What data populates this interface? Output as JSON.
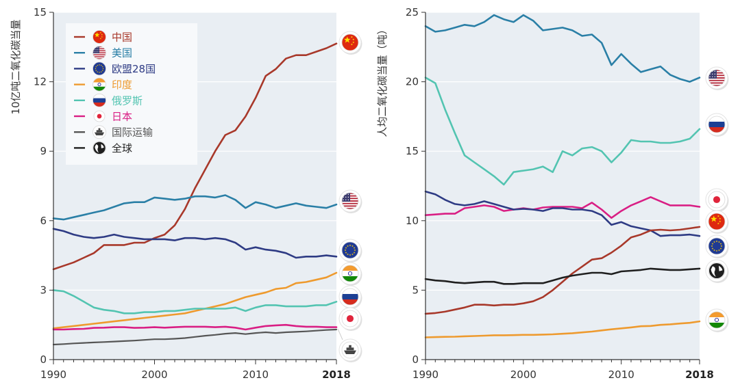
{
  "colors": {
    "china": "#a8382a",
    "usa": "#2a7fa6",
    "eu": "#2e3b84",
    "india": "#ee9a2e",
    "russia": "#53c4b1",
    "japan": "#d91e84",
    "shipping": "#555555",
    "world": "#1f1f1f"
  },
  "chart_data": [
    {
      "type": "line",
      "ylabel": "10亿吨二氧化碳当量",
      "xlim": [
        1990,
        2018
      ],
      "ylim": [
        0,
        15
      ],
      "xticks": [
        {
          "value": 1990,
          "label": "1990"
        },
        {
          "value": 2000,
          "label": "2000"
        },
        {
          "value": 2010,
          "label": "2010"
        },
        {
          "value": 2018,
          "label": "2018"
        }
      ],
      "yticks": [
        {
          "value": 0,
          "label": "0"
        },
        {
          "value": 3,
          "label": "3"
        },
        {
          "value": 6,
          "label": "6"
        },
        {
          "value": 9,
          "label": "9"
        },
        {
          "value": 12,
          "label": "12"
        },
        {
          "value": 15,
          "label": "15"
        }
      ],
      "x": [
        1990,
        1991,
        1992,
        1993,
        1994,
        1995,
        1996,
        1997,
        1998,
        1999,
        2000,
        2001,
        2002,
        2003,
        2004,
        2005,
        2006,
        2007,
        2008,
        2009,
        2010,
        2011,
        2012,
        2013,
        2014,
        2015,
        2016,
        2017,
        2018
      ],
      "legend": [
        {
          "key": "china",
          "label": "中国",
          "icon": "flag-china"
        },
        {
          "key": "usa",
          "label": "美国",
          "icon": "flag-usa"
        },
        {
          "key": "eu",
          "label": "欧盟28国",
          "icon": "flag-eu"
        },
        {
          "key": "india",
          "label": "印度",
          "icon": "flag-india"
        },
        {
          "key": "russia",
          "label": "俄罗斯",
          "icon": "flag-russia"
        },
        {
          "key": "japan",
          "label": "日本",
          "icon": "flag-japan"
        },
        {
          "key": "shipping",
          "label": "国际运输",
          "icon": "ship"
        },
        {
          "key": "world",
          "label": "全球",
          "icon": "globe"
        }
      ],
      "series": [
        {
          "key": "china",
          "values": [
            3.9,
            4.05,
            4.2,
            4.4,
            4.6,
            4.95,
            4.95,
            4.95,
            5.05,
            5.05,
            5.25,
            5.4,
            5.8,
            6.5,
            7.4,
            8.2,
            9.0,
            9.7,
            9.9,
            10.5,
            11.3,
            12.25,
            12.55,
            13.0,
            13.15,
            13.15,
            13.3,
            13.45,
            13.65
          ]
        },
        {
          "key": "usa",
          "values": [
            6.1,
            6.05,
            6.15,
            6.25,
            6.35,
            6.45,
            6.6,
            6.75,
            6.8,
            6.8,
            7.0,
            6.95,
            6.9,
            6.95,
            7.05,
            7.05,
            7.0,
            7.1,
            6.9,
            6.55,
            6.8,
            6.7,
            6.55,
            6.65,
            6.75,
            6.65,
            6.6,
            6.55,
            6.7
          ]
        },
        {
          "key": "eu",
          "values": [
            5.65,
            5.55,
            5.4,
            5.3,
            5.25,
            5.3,
            5.4,
            5.3,
            5.25,
            5.2,
            5.2,
            5.2,
            5.15,
            5.25,
            5.25,
            5.2,
            5.25,
            5.2,
            5.05,
            4.75,
            4.85,
            4.75,
            4.7,
            4.6,
            4.4,
            4.45,
            4.45,
            4.5,
            4.45
          ]
        },
        {
          "key": "india",
          "values": [
            1.35,
            1.4,
            1.45,
            1.5,
            1.55,
            1.6,
            1.65,
            1.7,
            1.75,
            1.8,
            1.85,
            1.9,
            1.95,
            2.0,
            2.1,
            2.2,
            2.3,
            2.4,
            2.55,
            2.7,
            2.8,
            2.9,
            3.05,
            3.1,
            3.3,
            3.35,
            3.45,
            3.55,
            3.75
          ]
        },
        {
          "key": "russia",
          "values": [
            3.0,
            2.95,
            2.75,
            2.5,
            2.25,
            2.15,
            2.1,
            2.0,
            2.0,
            2.05,
            2.05,
            2.1,
            2.1,
            2.15,
            2.2,
            2.2,
            2.2,
            2.2,
            2.25,
            2.1,
            2.25,
            2.35,
            2.35,
            2.3,
            2.3,
            2.3,
            2.35,
            2.35,
            2.5
          ]
        },
        {
          "key": "japan",
          "values": [
            1.3,
            1.3,
            1.32,
            1.33,
            1.37,
            1.38,
            1.4,
            1.4,
            1.37,
            1.38,
            1.4,
            1.38,
            1.4,
            1.42,
            1.42,
            1.42,
            1.4,
            1.42,
            1.38,
            1.3,
            1.38,
            1.45,
            1.48,
            1.5,
            1.45,
            1.42,
            1.42,
            1.4,
            1.4
          ]
        },
        {
          "key": "shipping",
          "values": [
            0.65,
            0.67,
            0.7,
            0.72,
            0.74,
            0.76,
            0.78,
            0.8,
            0.82,
            0.85,
            0.88,
            0.88,
            0.9,
            0.93,
            0.98,
            1.03,
            1.07,
            1.12,
            1.15,
            1.1,
            1.15,
            1.18,
            1.15,
            1.18,
            1.2,
            1.22,
            1.25,
            1.28,
            1.3
          ]
        }
      ]
    },
    {
      "type": "line",
      "ylabel": "人均二氧化碳当量（吨）",
      "xlim": [
        1990,
        2018
      ],
      "ylim": [
        0,
        25
      ],
      "xticks": [
        {
          "value": 1990,
          "label": "1990"
        },
        {
          "value": 2000,
          "label": "2000"
        },
        {
          "value": 2010,
          "label": "2010"
        },
        {
          "value": 2018,
          "label": "2018"
        }
      ],
      "yticks": [
        {
          "value": 0,
          "label": "0"
        },
        {
          "value": 5,
          "label": "5"
        },
        {
          "value": 10,
          "label": "10"
        },
        {
          "value": 15,
          "label": "15"
        },
        {
          "value": 20,
          "label": "20"
        },
        {
          "value": 25,
          "label": "25"
        }
      ],
      "x": [
        1990,
        1991,
        1992,
        1993,
        1994,
        1995,
        1996,
        1997,
        1998,
        1999,
        2000,
        2001,
        2002,
        2003,
        2004,
        2005,
        2006,
        2007,
        2008,
        2009,
        2010,
        2011,
        2012,
        2013,
        2014,
        2015,
        2016,
        2017,
        2018
      ],
      "series": [
        {
          "key": "usa",
          "values": [
            24.0,
            23.6,
            23.7,
            23.9,
            24.1,
            24.0,
            24.3,
            24.8,
            24.5,
            24.3,
            24.8,
            24.4,
            23.7,
            23.8,
            23.9,
            23.7,
            23.3,
            23.4,
            22.8,
            21.2,
            22.0,
            21.3,
            20.7,
            20.9,
            21.1,
            20.5,
            20.2,
            20.0,
            20.3
          ]
        },
        {
          "key": "russia",
          "values": [
            20.3,
            19.9,
            18.0,
            16.3,
            14.7,
            14.2,
            13.7,
            13.2,
            12.6,
            13.5,
            13.6,
            13.7,
            13.9,
            13.5,
            15.0,
            14.7,
            15.2,
            15.3,
            15.0,
            14.2,
            14.9,
            15.8,
            15.7,
            15.7,
            15.6,
            15.6,
            15.7,
            15.9,
            16.6
          ]
        },
        {
          "key": "japan",
          "values": [
            10.4,
            10.45,
            10.5,
            10.5,
            10.9,
            11.0,
            11.1,
            11.0,
            10.7,
            10.8,
            10.9,
            10.8,
            10.95,
            11.0,
            11.0,
            11.0,
            10.9,
            11.3,
            10.8,
            10.2,
            10.7,
            11.1,
            11.4,
            11.7,
            11.4,
            11.1,
            11.1,
            11.1,
            11.0
          ]
        },
        {
          "key": "eu",
          "values": [
            12.1,
            11.9,
            11.5,
            11.2,
            11.1,
            11.2,
            11.4,
            11.2,
            11.0,
            10.8,
            10.85,
            10.8,
            10.7,
            10.9,
            10.9,
            10.8,
            10.8,
            10.7,
            10.4,
            9.7,
            9.9,
            9.6,
            9.45,
            9.3,
            8.9,
            8.95,
            8.95,
            9.0,
            8.9
          ]
        },
        {
          "key": "china",
          "values": [
            3.3,
            3.35,
            3.45,
            3.6,
            3.75,
            3.95,
            3.95,
            3.9,
            3.95,
            3.95,
            4.05,
            4.2,
            4.5,
            5.0,
            5.6,
            6.2,
            6.7,
            7.2,
            7.3,
            7.7,
            8.2,
            8.8,
            9.0,
            9.3,
            9.35,
            9.3,
            9.35,
            9.45,
            9.55
          ]
        },
        {
          "key": "world",
          "values": [
            5.8,
            5.7,
            5.65,
            5.55,
            5.5,
            5.55,
            5.6,
            5.6,
            5.45,
            5.45,
            5.5,
            5.5,
            5.5,
            5.7,
            5.9,
            6.05,
            6.15,
            6.25,
            6.25,
            6.15,
            6.35,
            6.4,
            6.45,
            6.55,
            6.5,
            6.45,
            6.45,
            6.5,
            6.55
          ]
        },
        {
          "key": "india",
          "values": [
            1.6,
            1.62,
            1.64,
            1.65,
            1.68,
            1.7,
            1.72,
            1.75,
            1.75,
            1.76,
            1.78,
            1.78,
            1.8,
            1.82,
            1.86,
            1.9,
            1.96,
            2.02,
            2.1,
            2.18,
            2.25,
            2.32,
            2.4,
            2.42,
            2.5,
            2.54,
            2.6,
            2.65,
            2.75
          ]
        }
      ]
    }
  ]
}
